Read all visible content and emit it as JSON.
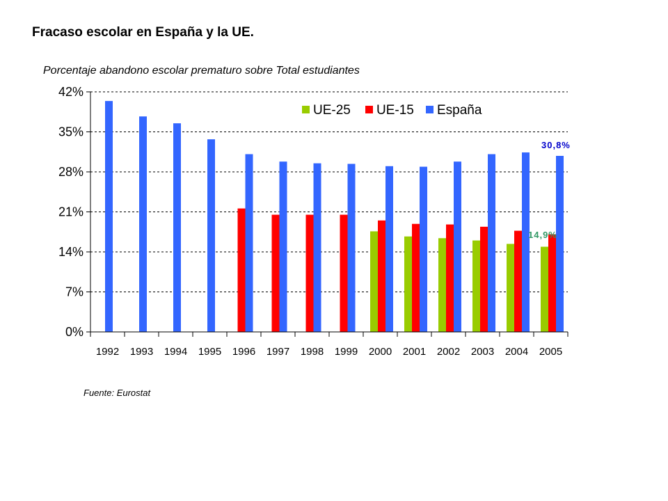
{
  "slide": {
    "title": "Fracaso escolar en España y la UE.",
    "source": "Fuente: Eurostat"
  },
  "chart_data": {
    "type": "bar",
    "subtitle": "Porcentaje abandono escolar prematuro sobre Total estudiantes",
    "categories": [
      "1992",
      "1993",
      "1994",
      "1995",
      "1996",
      "1997",
      "1998",
      "1999",
      "2000",
      "2001",
      "2002",
      "2003",
      "2004",
      "2005"
    ],
    "series": [
      {
        "name": "UE-25",
        "color": "#99cc00",
        "values": [
          null,
          null,
          null,
          null,
          null,
          null,
          null,
          null,
          17.6,
          16.7,
          16.4,
          16.0,
          15.4,
          14.9
        ]
      },
      {
        "name": "UE-15",
        "color": "#ff0000",
        "values": [
          null,
          null,
          null,
          null,
          21.6,
          20.5,
          20.5,
          20.5,
          19.5,
          18.9,
          18.8,
          18.4,
          17.7,
          17.1
        ]
      },
      {
        "name": "España",
        "color": "#3366ff",
        "values": [
          40.4,
          37.7,
          36.5,
          33.7,
          31.1,
          29.8,
          29.5,
          29.4,
          29.0,
          28.9,
          29.8,
          31.1,
          31.4,
          30.8
        ]
      }
    ],
    "ylim": [
      0,
      42
    ],
    "yticks": [
      0,
      7,
      14,
      21,
      28,
      35,
      42
    ],
    "ytick_labels": [
      "0%",
      "7%",
      "14%",
      "21%",
      "28%",
      "35%",
      "42%"
    ],
    "grid": true,
    "legend_position": "top-right",
    "annotations": [
      {
        "text": "30,8%",
        "color": "#0000cc"
      },
      {
        "text": "14,9%",
        "color": "#339966"
      }
    ]
  }
}
